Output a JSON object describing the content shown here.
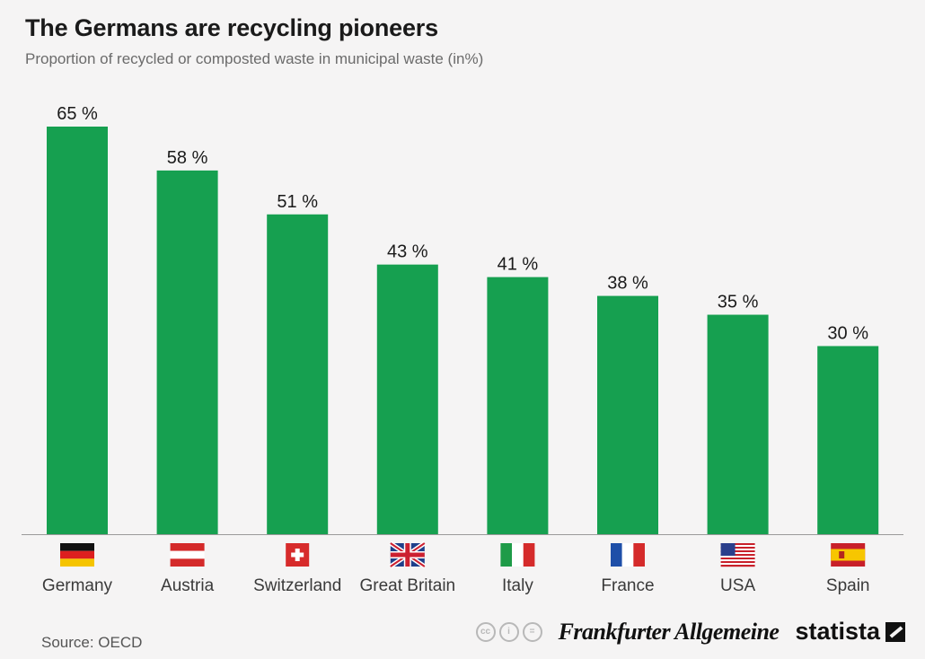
{
  "title": "The Germans are recycling pioneers",
  "subtitle": "Proportion of recycled or composted waste in municipal waste (in%)",
  "source": "Source: OECD",
  "brand": {
    "newspaper": "Frankfurter Allgemeine",
    "statista": "statista",
    "license_icons": [
      "cc-icon",
      "by-icon",
      "nd-icon"
    ]
  },
  "colors": {
    "bar": "#16a050",
    "background": "#f5f4f4",
    "axis": "#9a9a9a"
  },
  "chart_data": {
    "type": "bar",
    "title": "The Germans are recycling pioneers",
    "subtitle": "Proportion of recycled or composted waste in municipal waste (in%)",
    "categories": [
      "Germany",
      "Austria",
      "Switzerland",
      "Great Britain",
      "Italy",
      "France",
      "USA",
      "Spain"
    ],
    "values": [
      65,
      58,
      51,
      43,
      41,
      38,
      35,
      30
    ],
    "value_labels": [
      "65 %",
      "58 %",
      "51 %",
      "43 %",
      "41 %",
      "38 %",
      "35 %",
      "30 %"
    ],
    "flags": [
      "germany-flag-icon",
      "austria-flag-icon",
      "switzerland-flag-icon",
      "great-britain-flag-icon",
      "italy-flag-icon",
      "france-flag-icon",
      "usa-flag-icon",
      "spain-flag-icon"
    ],
    "ylim": [
      0,
      65
    ],
    "grid": false,
    "legend": "none"
  }
}
